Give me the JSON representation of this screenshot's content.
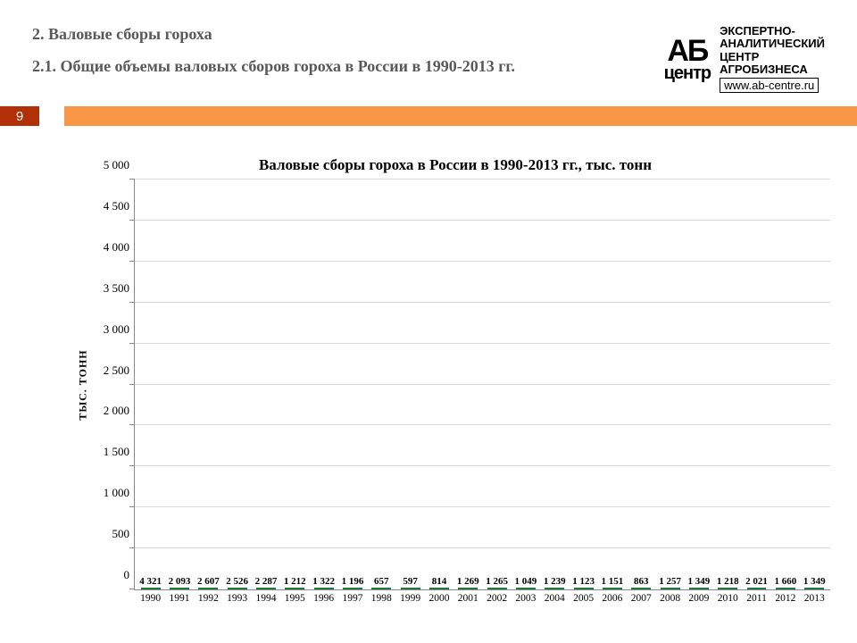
{
  "header": {
    "section_title": "2. Валовые сборы гороха",
    "subsection_title": "2.1.  Общие объемы валовых сборов гороха в России в 1990-2013 гг."
  },
  "logo": {
    "mark_top": "АБ",
    "mark_bottom": "центр",
    "line1": "ЭКСПЕРТНО-",
    "line2": "АНАЛИТИЧЕСКИЙ",
    "line3": "ЦЕНТР",
    "line4": "АГРОБИЗНЕСА",
    "url": "www.ab-centre.ru"
  },
  "page_number": "9",
  "stripe": {
    "badge_bg": "#b23008",
    "bar_bg": "#f79646"
  },
  "chart": {
    "type": "bar",
    "title": "Валовые сборы гороха в России в 1990-2013 гг., тыс. тонн",
    "ylabel": "ТЫС. ТОНН",
    "y_max": 5000,
    "y_ticks": [
      0,
      500,
      1000,
      1500,
      2000,
      2500,
      3000,
      3500,
      4000,
      4500,
      5000
    ],
    "y_tick_labels": [
      "0",
      "500",
      "1 000",
      "1 500",
      "2 000",
      "2 500",
      "3 000",
      "3 500",
      "4 000",
      "4 500",
      "5 000"
    ],
    "categories": [
      "1990",
      "1991",
      "1992",
      "1993",
      "1994",
      "1995",
      "1996",
      "1997",
      "1998",
      "1999",
      "2000",
      "2001",
      "2002",
      "2003",
      "2004",
      "2005",
      "2006",
      "2007",
      "2008",
      "2009",
      "2010",
      "2011",
      "2012",
      "2013"
    ],
    "values": [
      4321,
      2093,
      2607,
      2526,
      2287,
      1212,
      1322,
      1196,
      657,
      597,
      814,
      1269,
      1265,
      1049,
      1239,
      1123,
      1151,
      863,
      1257,
      1349,
      1218,
      2021,
      1660,
      1349
    ],
    "value_labels": [
      "4 321",
      "2 093",
      "2 607",
      "2 526",
      "2 287",
      "1 212",
      "1 322",
      "1 196",
      "657",
      "597",
      "814",
      "1 269",
      "1 265",
      "1 049",
      "1 239",
      "1 123",
      "1 151",
      "863",
      "1 257",
      "1 349",
      "1 218",
      "2 021",
      "1 660",
      "1 349"
    ],
    "bar_fill": "#2fa14b",
    "bar_border": "#1e7a36",
    "grid_color": "#d9d9d9",
    "axis_color": "#888888",
    "background_color": "#ffffff",
    "title_fontsize": 17,
    "label_fontsize": 12,
    "value_fontsize": 11
  }
}
